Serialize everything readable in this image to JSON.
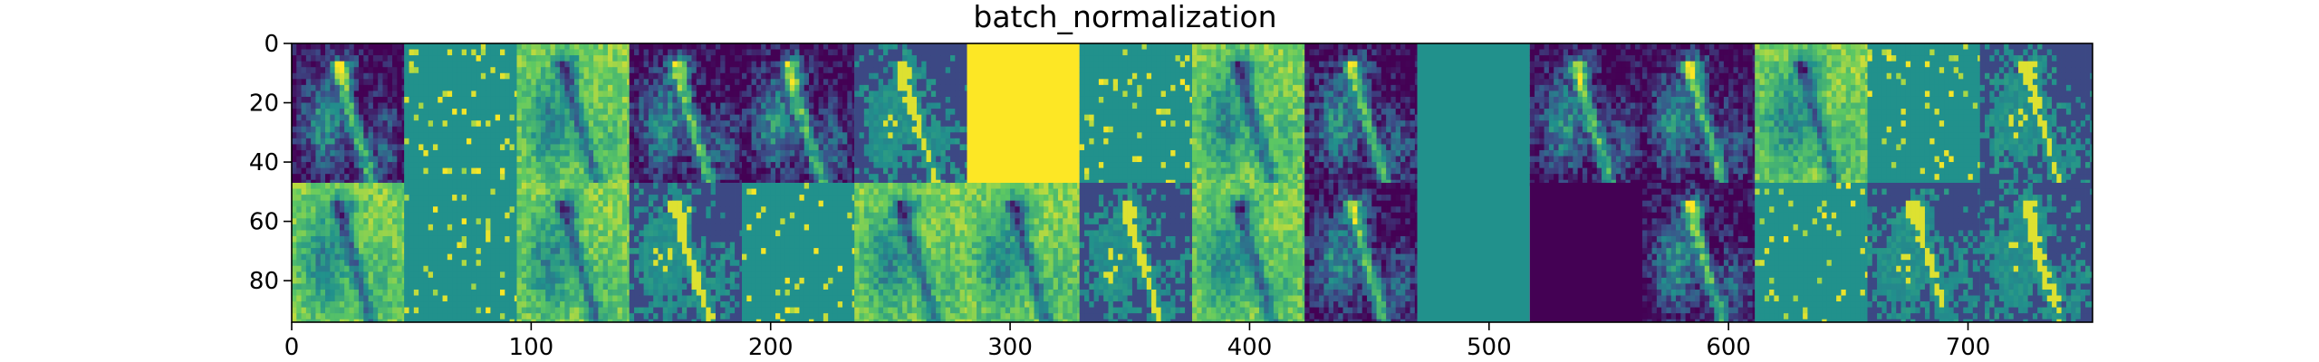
{
  "chart_data": {
    "type": "heatmap",
    "title": "batch_normalization",
    "xlabel": "",
    "ylabel": "",
    "colormap": "viridis",
    "colors": {
      "min": "#440154",
      "mid": "#21918c",
      "max": "#fde725",
      "background": "#ffffff",
      "axis": "#000000"
    },
    "xlim": [
      0,
      752
    ],
    "ylim": [
      94,
      0
    ],
    "x_ticks": [
      0,
      100,
      200,
      300,
      400,
      500,
      600,
      700
    ],
    "y_ticks": [
      0,
      20,
      40,
      60,
      80
    ],
    "x_tick_labels": [
      "0",
      "100",
      "200",
      "300",
      "400",
      "500",
      "600",
      "700"
    ],
    "y_tick_labels": [
      "0",
      "20",
      "40",
      "60",
      "80"
    ],
    "grid": false,
    "legend": "none",
    "tiles": {
      "columns": 16,
      "rows": 2,
      "tile_width": 47,
      "tile_height": 47,
      "row_0_kinds": [
        "a",
        "s",
        "b",
        "a",
        "a",
        "c",
        "y",
        "s",
        "b",
        "a",
        "f",
        "a",
        "a",
        "b",
        "s",
        "c"
      ],
      "row_1_kinds": [
        "b",
        "s",
        "b",
        "c",
        "s",
        "b",
        "b",
        "c",
        "b",
        "a",
        "f",
        "p",
        "a",
        "s",
        "c",
        "c"
      ]
    }
  }
}
